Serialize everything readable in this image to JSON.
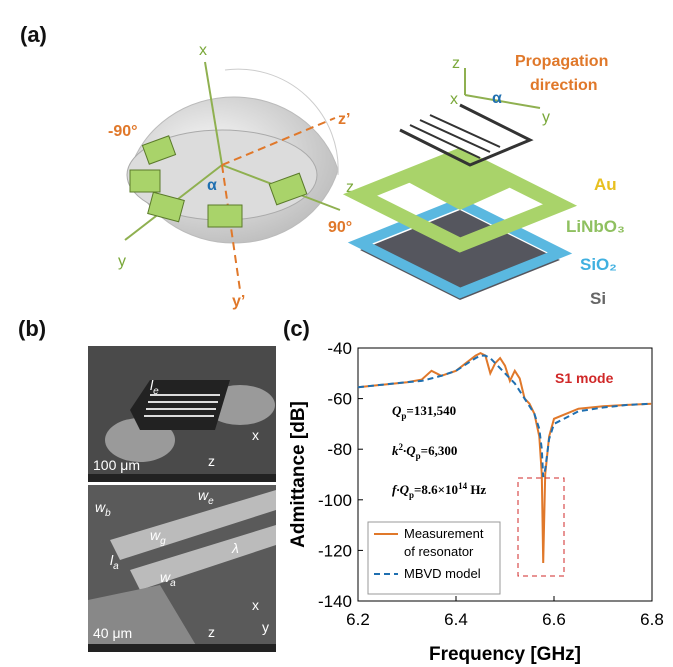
{
  "panel_a": {
    "label": "(a)",
    "sphere": {
      "x": "x",
      "z_prime": "z’",
      "y": "y",
      "y_prime": "y’",
      "minus90": "-90°",
      "plus90": "90°",
      "alpha": "α",
      "z": "z"
    },
    "stack": {
      "z": "z",
      "x": "x",
      "y": "y",
      "alpha": "α",
      "prop1": "Propagation",
      "prop2": "direction",
      "au": "Au",
      "linbo3": "LiNbO₃",
      "sio2": "SiO₂",
      "si": "Si"
    }
  },
  "panel_b": {
    "label": "(b)",
    "top": {
      "le_base": "l",
      "le_sub": "e",
      "scale": "100 μm",
      "z": "z",
      "x": "x"
    },
    "bottom": {
      "wb_base": "w",
      "wb_sub": "b",
      "we_base": "w",
      "we_sub": "e",
      "wg_base": "w",
      "wg_sub": "g",
      "lambda": "λ",
      "la_base": "l",
      "la_sub": "a",
      "wa_base": "w",
      "wa_sub": "a",
      "scale": "40 μm",
      "z": "z",
      "x": "x",
      "y": "y"
    }
  },
  "panel_c": {
    "label": "(c)"
  },
  "chart_data": {
    "type": "line",
    "x_label": "Frequency [GHz]",
    "y_label": "Admittance [dB]",
    "xlim": [
      6.2,
      6.8
    ],
    "xticks": [
      6.2,
      6.4,
      6.6,
      6.8
    ],
    "ylim": [
      -140,
      -40
    ],
    "yticks": [
      -140,
      -120,
      -100,
      -80,
      -60,
      -40
    ],
    "x": [
      6.2,
      6.25,
      6.3,
      6.33,
      6.35,
      6.37,
      6.4,
      6.42,
      6.44,
      6.45,
      6.46,
      6.47,
      6.48,
      6.49,
      6.5,
      6.51,
      6.52,
      6.53,
      6.54,
      6.55,
      6.56,
      6.57,
      6.575,
      6.578,
      6.582,
      6.59,
      6.6,
      6.65,
      6.7,
      6.75,
      6.8
    ],
    "series": [
      {
        "name": [
          "Measurement",
          "of resonator"
        ],
        "color": "#e0782a",
        "dash": false,
        "values": [
          -55.5,
          -54.5,
          -53.5,
          -52.5,
          -49,
          -51,
          -49,
          -46,
          -43,
          -42,
          -43,
          -50,
          -46,
          -44,
          -47,
          -53,
          -49,
          -52,
          -60,
          -62,
          -66,
          -75,
          -90,
          -125,
          -90,
          -75,
          -68,
          -64,
          -63,
          -62.5,
          -62
        ]
      },
      {
        "name": [
          "MBVD model"
        ],
        "color": "#1f6fb0",
        "dash": true,
        "values": [
          -55.5,
          -54.5,
          -53.5,
          -53,
          -52,
          -51,
          -49,
          -46.5,
          -44,
          -43,
          -43,
          -44,
          -46,
          -48,
          -50,
          -52,
          -54,
          -57,
          -60,
          -63,
          -66,
          -72,
          -80,
          -91,
          -88,
          -76,
          -70,
          -65,
          -63.5,
          -62.5,
          -62
        ]
      }
    ],
    "annotations": {
      "mode": "S1 mode",
      "qp": [
        "Q",
        "p",
        "=131,540"
      ],
      "kqp": [
        "k",
        "2",
        "·Q",
        "p",
        "=6,300"
      ],
      "fqp": [
        "f·Q",
        "p",
        "=8.6×10",
        "14",
        " Hz"
      ]
    }
  }
}
